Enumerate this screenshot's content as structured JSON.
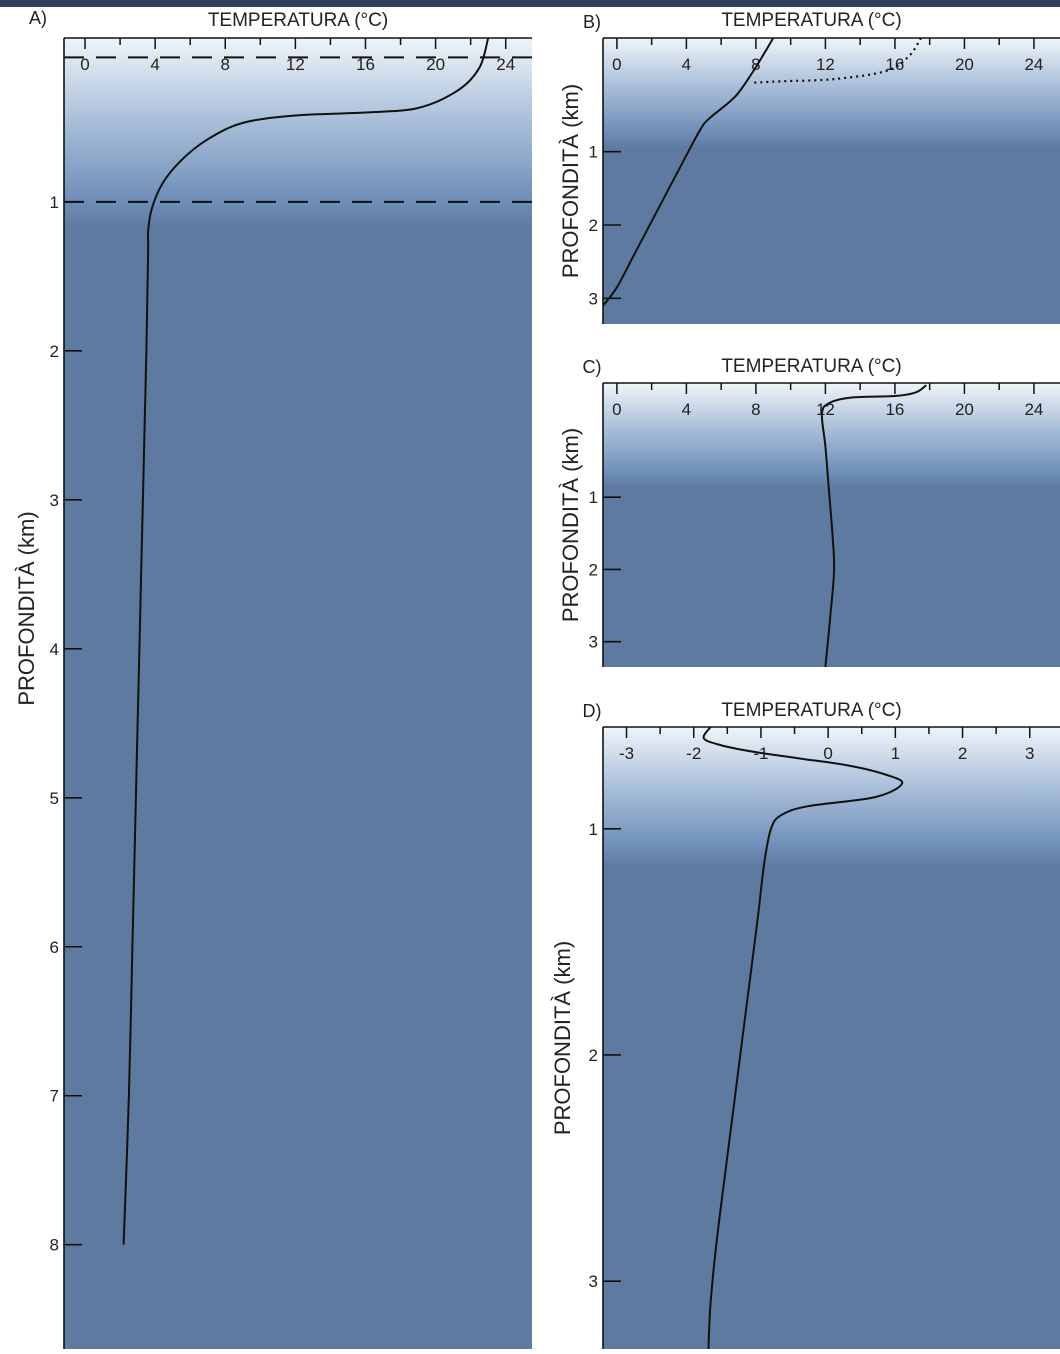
{
  "chart_data": [
    {
      "type": "line",
      "panel_label": "A)",
      "xlabel": "TEMPERATURA (°C)",
      "ylabel": "PROFONDITÀ (km)",
      "x_ticks": [
        "0",
        "4",
        "8",
        "12",
        "16",
        "20",
        "24"
      ],
      "y_ticks": [
        "1",
        "2",
        "3",
        "4",
        "5",
        "6",
        "7",
        "8"
      ],
      "xlim": [
        -1.2,
        25.5
      ],
      "ylim": [
        -0.1,
        8.7
      ],
      "dashed_depths_km": [
        0.03,
        1.0
      ],
      "series": [
        {
          "style": "solid",
          "points": [
            [
              23,
              -0.1
            ],
            [
              22.5,
              0.1
            ],
            [
              21.3,
              0.25
            ],
            [
              19,
              0.37
            ],
            [
              16,
              0.4
            ],
            [
              12,
              0.42
            ],
            [
              9,
              0.47
            ],
            [
              7,
              0.58
            ],
            [
              5.5,
              0.72
            ],
            [
              4.4,
              0.88
            ],
            [
              3.8,
              1.05
            ],
            [
              3.6,
              1.2
            ],
            [
              3.6,
              1.35
            ],
            [
              3.5,
              2
            ],
            [
              3.3,
              3
            ],
            [
              3.1,
              4
            ],
            [
              2.9,
              5
            ],
            [
              2.7,
              6
            ],
            [
              2.5,
              7
            ],
            [
              2.2,
              8
            ]
          ]
        }
      ]
    },
    {
      "type": "line",
      "panel_label": "B)",
      "xlabel": "TEMPERATURA (°C)",
      "ylabel": "PROFONDITÀ (km)",
      "x_ticks": [
        "0",
        "4",
        "8",
        "12",
        "16",
        "20",
        "24"
      ],
      "y_ticks": [
        "1",
        "2",
        "3"
      ],
      "xlim": [
        -0.8,
        25.5
      ],
      "ylim": [
        -0.55,
        3.35
      ],
      "series": [
        {
          "style": "solid",
          "points": [
            [
              9,
              -0.55
            ],
            [
              8.5,
              -0.35
            ],
            [
              7.8,
              -0.08
            ],
            [
              6.8,
              0.25
            ],
            [
              5.3,
              0.55
            ],
            [
              4.8,
              0.7
            ],
            [
              4,
              1.05
            ],
            [
              3,
              1.5
            ],
            [
              2,
              1.95
            ],
            [
              1,
              2.4
            ],
            [
              0,
              2.85
            ],
            [
              -0.8,
              3.1
            ]
          ]
        },
        {
          "style": "dotted",
          "points": [
            [
              17.5,
              -0.55
            ],
            [
              16.8,
              -0.3
            ],
            [
              15.5,
              -0.1
            ],
            [
              12.5,
              0.01
            ],
            [
              9.5,
              0.04
            ],
            [
              7.8,
              0.06
            ]
          ]
        }
      ]
    },
    {
      "type": "line",
      "panel_label": "C)",
      "xlabel": "TEMPERATURA (°C)",
      "ylabel": "PROFONDITÀ (km)",
      "x_ticks": [
        "0",
        "4",
        "8",
        "12",
        "16",
        "20",
        "24"
      ],
      "y_ticks": [
        "1",
        "2",
        "3"
      ],
      "xlim": [
        -0.8,
        25.5
      ],
      "ylim": [
        -0.58,
        3.35
      ],
      "series": [
        {
          "style": "solid",
          "points": [
            [
              17.8,
              -0.55
            ],
            [
              17.2,
              -0.45
            ],
            [
              16,
              -0.4
            ],
            [
              13.5,
              -0.38
            ],
            [
              12.2,
              -0.3
            ],
            [
              11.8,
              -0.15
            ],
            [
              12,
              0.3
            ],
            [
              12.2,
              0.9
            ],
            [
              12.4,
              1.5
            ],
            [
              12.5,
              2
            ],
            [
              12.3,
              2.6
            ],
            [
              12,
              3.35
            ]
          ]
        }
      ]
    },
    {
      "type": "line",
      "panel_label": "D)",
      "xlabel": "TEMPERATURA (°C)",
      "ylabel": "PROFONDITÀ (km)",
      "x_ticks": [
        "-3",
        "-2",
        "-1",
        "0",
        "1",
        "2",
        "3"
      ],
      "y_ticks": [
        "1",
        "2",
        "3"
      ],
      "xlim": [
        -3.35,
        3.45
      ],
      "ylim": [
        0.55,
        3.3
      ],
      "series": [
        {
          "style": "solid",
          "points": [
            [
              -1.75,
              0.55
            ],
            [
              -1.85,
              0.6
            ],
            [
              -1.6,
              0.63
            ],
            [
              -1.1,
              0.66
            ],
            [
              -0.4,
              0.69
            ],
            [
              0.3,
              0.72
            ],
            [
              0.85,
              0.76
            ],
            [
              1.1,
              0.8
            ],
            [
              0.7,
              0.86
            ],
            [
              -0.3,
              0.9
            ],
            [
              -0.7,
              0.94
            ],
            [
              -0.85,
              1.0
            ],
            [
              -0.95,
              1.15
            ],
            [
              -1.05,
              1.4
            ],
            [
              -1.2,
              1.75
            ],
            [
              -1.35,
              2.1
            ],
            [
              -1.5,
              2.45
            ],
            [
              -1.65,
              2.8
            ],
            [
              -1.75,
              3.1
            ],
            [
              -1.78,
              3.3
            ]
          ]
        }
      ]
    }
  ]
}
